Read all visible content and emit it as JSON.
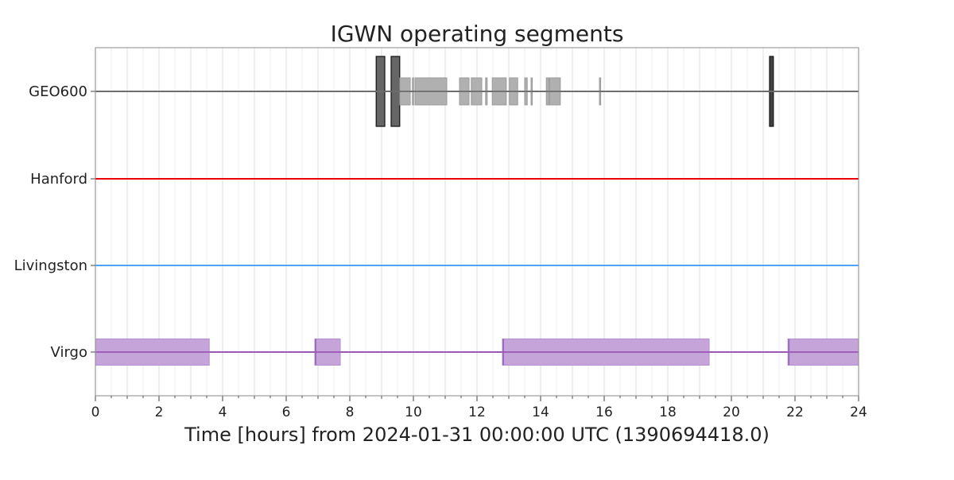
{
  "chart_data": {
    "type": "segments",
    "title": "IGWN operating segments",
    "xlabel": "Time [hours] from 2024-01-31 00:00:00 UTC (1390694418.0)",
    "ylabel": "",
    "xlim": [
      0,
      24
    ],
    "x_ticks": [
      0,
      2,
      4,
      6,
      8,
      10,
      12,
      14,
      16,
      18,
      20,
      22,
      24
    ],
    "x_minor_step": 0.5,
    "grid": "vertical",
    "rows": [
      {
        "name": "GEO600",
        "color": "#6e6e6e",
        "segments": [
          {
            "start": 8.83,
            "end": 9.1,
            "kind": "major",
            "color": "#666666"
          },
          {
            "start": 9.3,
            "end": 9.57,
            "kind": "major",
            "color": "#666666"
          },
          {
            "start": 9.57,
            "end": 9.9,
            "kind": "minor",
            "color": "#b0b0b0"
          },
          {
            "start": 9.97,
            "end": 10.0,
            "kind": "minor",
            "color": "#b0b0b0"
          },
          {
            "start": 10.05,
            "end": 11.05,
            "kind": "minor",
            "color": "#b0b0b0"
          },
          {
            "start": 11.45,
            "end": 11.75,
            "kind": "minor",
            "color": "#b0b0b0"
          },
          {
            "start": 11.82,
            "end": 12.15,
            "kind": "minor",
            "color": "#b0b0b0"
          },
          {
            "start": 12.27,
            "end": 12.32,
            "kind": "minor",
            "color": "#b0b0b0"
          },
          {
            "start": 12.48,
            "end": 12.92,
            "kind": "minor",
            "color": "#b0b0b0"
          },
          {
            "start": 13.02,
            "end": 13.28,
            "kind": "minor",
            "color": "#b0b0b0"
          },
          {
            "start": 13.5,
            "end": 13.58,
            "kind": "minor",
            "color": "#b0b0b0"
          },
          {
            "start": 13.7,
            "end": 13.73,
            "kind": "minor",
            "color": "#b0b0b0"
          },
          {
            "start": 14.18,
            "end": 14.26,
            "kind": "minor",
            "color": "#b0b0b0"
          },
          {
            "start": 14.28,
            "end": 14.62,
            "kind": "minor",
            "color": "#b0b0b0"
          },
          {
            "start": 15.85,
            "end": 15.89,
            "kind": "minor",
            "color": "#b0b0b0"
          },
          {
            "start": 21.2,
            "end": 21.32,
            "kind": "major",
            "color": "#444444"
          }
        ]
      },
      {
        "name": "Hanford",
        "color": "#ee0000",
        "segments": []
      },
      {
        "name": "Livingston",
        "color": "#4ba6ff",
        "segments": []
      },
      {
        "name": "Virgo",
        "color": "#9b59b6",
        "segments": [
          {
            "start": 0.0,
            "end": 3.58,
            "kind": "minor",
            "color": "#c5a5d9"
          },
          {
            "start": 6.9,
            "end": 7.7,
            "kind": "minor",
            "color": "#c5a5d9"
          },
          {
            "start": 12.8,
            "end": 19.3,
            "kind": "minor",
            "color": "#c5a5d9"
          },
          {
            "start": 21.78,
            "end": 24.0,
            "kind": "minor",
            "color": "#c5a5d9"
          }
        ]
      }
    ]
  }
}
